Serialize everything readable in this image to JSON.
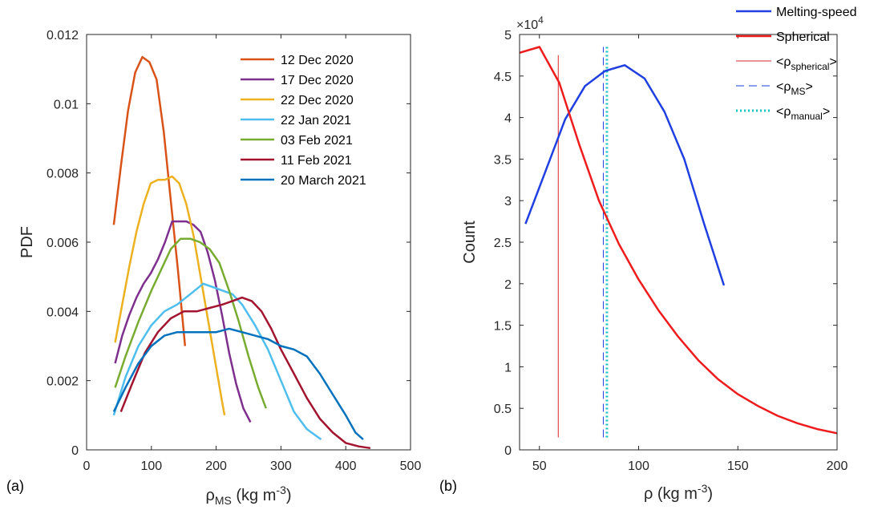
{
  "chart_data": [
    {
      "type": "line",
      "panel_label": "(a)",
      "ylabel": "PDF",
      "xlabel": "ρ",
      "xlabel_sub": "MS",
      "xlabel_unit": " (kg m",
      "xlabel_sup": "-3",
      "xlabel_close": ")",
      "xlim": [
        0,
        500
      ],
      "ylim": [
        0,
        0.012
      ],
      "xticks": [
        "0",
        "100",
        "200",
        "300",
        "400",
        "500"
      ],
      "yticks": [
        "0",
        "0.002",
        "0.004",
        "0.006",
        "0.008",
        "0.01",
        "0.012"
      ],
      "legend_position": "top-right",
      "series": [
        {
          "name": "12 Dec 2020",
          "color": "#d95319",
          "x": [
            42,
            53,
            64,
            75,
            86,
            97,
            108,
            119,
            130,
            141,
            152
          ],
          "y": [
            0.0065,
            0.0082,
            0.0098,
            0.0109,
            0.01135,
            0.0112,
            0.0107,
            0.0092,
            0.0072,
            0.0052,
            0.003
          ]
        },
        {
          "name": "17 Dec 2020",
          "color": "#7e2f8e",
          "x": [
            44,
            55,
            66,
            77,
            88,
            99,
            110,
            121,
            132,
            143,
            154,
            165,
            176,
            187,
            198,
            209,
            220,
            231,
            242,
            253
          ],
          "y": [
            0.0025,
            0.0033,
            0.0039,
            0.0044,
            0.0048,
            0.0051,
            0.0055,
            0.006,
            0.0066,
            0.0066,
            0.0066,
            0.0065,
            0.0063,
            0.0057,
            0.0049,
            0.0039,
            0.0028,
            0.0019,
            0.0012,
            0.0008
          ]
        },
        {
          "name": "22 Dec 2020",
          "color": "#edb120",
          "x": [
            44,
            55,
            66,
            77,
            88,
            99,
            110,
            121,
            132,
            143,
            154,
            165,
            176,
            187,
            198,
            209,
            213
          ],
          "y": [
            0.0031,
            0.0042,
            0.0053,
            0.0063,
            0.0071,
            0.0077,
            0.0078,
            0.0078,
            0.0079,
            0.0077,
            0.0071,
            0.0062,
            0.005,
            0.0038,
            0.0026,
            0.0014,
            0.001
          ]
        },
        {
          "name": "22 Jan 2021",
          "color": "#4dbeee",
          "x": [
            42,
            60,
            80,
            100,
            120,
            140,
            160,
            180,
            195,
            210,
            225,
            240,
            260,
            280,
            300,
            320,
            340,
            362
          ],
          "y": [
            0.001,
            0.0021,
            0.003,
            0.0036,
            0.004,
            0.0042,
            0.0045,
            0.0048,
            0.0047,
            0.0046,
            0.0045,
            0.0042,
            0.0036,
            0.0029,
            0.002,
            0.0011,
            0.0006,
            0.0003
          ]
        },
        {
          "name": "03 Feb 2021",
          "color": "#77ac30",
          "x": [
            44,
            60,
            80,
            100,
            115,
            130,
            145,
            160,
            175,
            190,
            205,
            220,
            235,
            250,
            265,
            277
          ],
          "y": [
            0.0018,
            0.0027,
            0.0037,
            0.0046,
            0.0052,
            0.0058,
            0.0061,
            0.0061,
            0.006,
            0.0058,
            0.0054,
            0.0046,
            0.0037,
            0.0027,
            0.0018,
            0.0012
          ]
        },
        {
          "name": "11 Feb 2021",
          "color": "#a2142f",
          "x": [
            53,
            70,
            90,
            110,
            130,
            150,
            170,
            190,
            210,
            225,
            240,
            255,
            270,
            285,
            300,
            320,
            340,
            360,
            380,
            400,
            420,
            438
          ],
          "y": [
            0.0011,
            0.0019,
            0.0028,
            0.0034,
            0.0038,
            0.004,
            0.004,
            0.0041,
            0.0042,
            0.0043,
            0.0044,
            0.0043,
            0.004,
            0.0035,
            0.0029,
            0.0022,
            0.0015,
            0.0009,
            0.0005,
            0.0002,
            0.0001,
            5e-05
          ]
        },
        {
          "name": "20 March 2021",
          "color": "#0072bd",
          "x": [
            42,
            60,
            80,
            100,
            120,
            140,
            160,
            180,
            200,
            220,
            240,
            260,
            280,
            300,
            320,
            340,
            360,
            380,
            400,
            415,
            427
          ],
          "y": [
            0.0011,
            0.0018,
            0.0025,
            0.003,
            0.0033,
            0.0034,
            0.0034,
            0.0034,
            0.0034,
            0.0035,
            0.0034,
            0.0033,
            0.0032,
            0.003,
            0.0029,
            0.0027,
            0.0022,
            0.0016,
            0.001,
            0.0005,
            0.0003
          ]
        }
      ]
    },
    {
      "type": "line",
      "panel_label": "(b)",
      "ylabel": "Count",
      "xlabel": "ρ",
      "xlabel_unit": " (kg m",
      "xlabel_sup": "-3",
      "xlabel_close": ")",
      "multiplier": "×10",
      "multiplier_exp": "4",
      "xlim": [
        40,
        200
      ],
      "ylim": [
        0,
        5
      ],
      "xticks": [
        "50",
        "100",
        "150",
        "200"
      ],
      "yticks": [
        "0",
        "0.5",
        "1",
        "1.5",
        "2",
        "2.5",
        "3",
        "3.5",
        "4",
        "4.5",
        "5"
      ],
      "legend_position": "top-right",
      "series": [
        {
          "name": "Melting-speed",
          "color": "#1f3fe0",
          "x": [
            43,
            53,
            63,
            73,
            83,
            93,
            103,
            113,
            123,
            133,
            143
          ],
          "y": [
            2.72,
            3.35,
            3.98,
            4.38,
            4.56,
            4.63,
            4.47,
            4.07,
            3.5,
            2.72,
            1.98
          ]
        },
        {
          "name": "Spherical",
          "color": "#ee1c1c",
          "x": [
            40,
            50,
            60,
            70,
            80,
            90,
            100,
            110,
            120,
            130,
            140,
            150,
            160,
            170,
            180,
            190,
            200
          ],
          "y": [
            4.78,
            4.85,
            4.42,
            3.68,
            3.0,
            2.48,
            2.05,
            1.68,
            1.36,
            1.08,
            0.85,
            0.67,
            0.53,
            0.41,
            0.32,
            0.25,
            0.2
          ]
        }
      ],
      "vlines": [
        {
          "name": "<ρ",
          "sub": "spherical",
          "close": ">",
          "x": 59.5,
          "color": "#d62728",
          "style": "solid",
          "ymin": 0.15,
          "ymax": 4.75
        },
        {
          "name": "<ρ",
          "sub": "MS",
          "close": ">",
          "x": 82.2,
          "color": "#1f3fe0",
          "style": "dashed",
          "ymin": 0.15,
          "ymax": 4.85
        },
        {
          "name": "<ρ",
          "sub": "manual",
          "close": ">",
          "x": 84,
          "color": "#17c3c3",
          "style": "dotted",
          "ymin": 0.15,
          "ymax": 4.85
        }
      ]
    }
  ]
}
